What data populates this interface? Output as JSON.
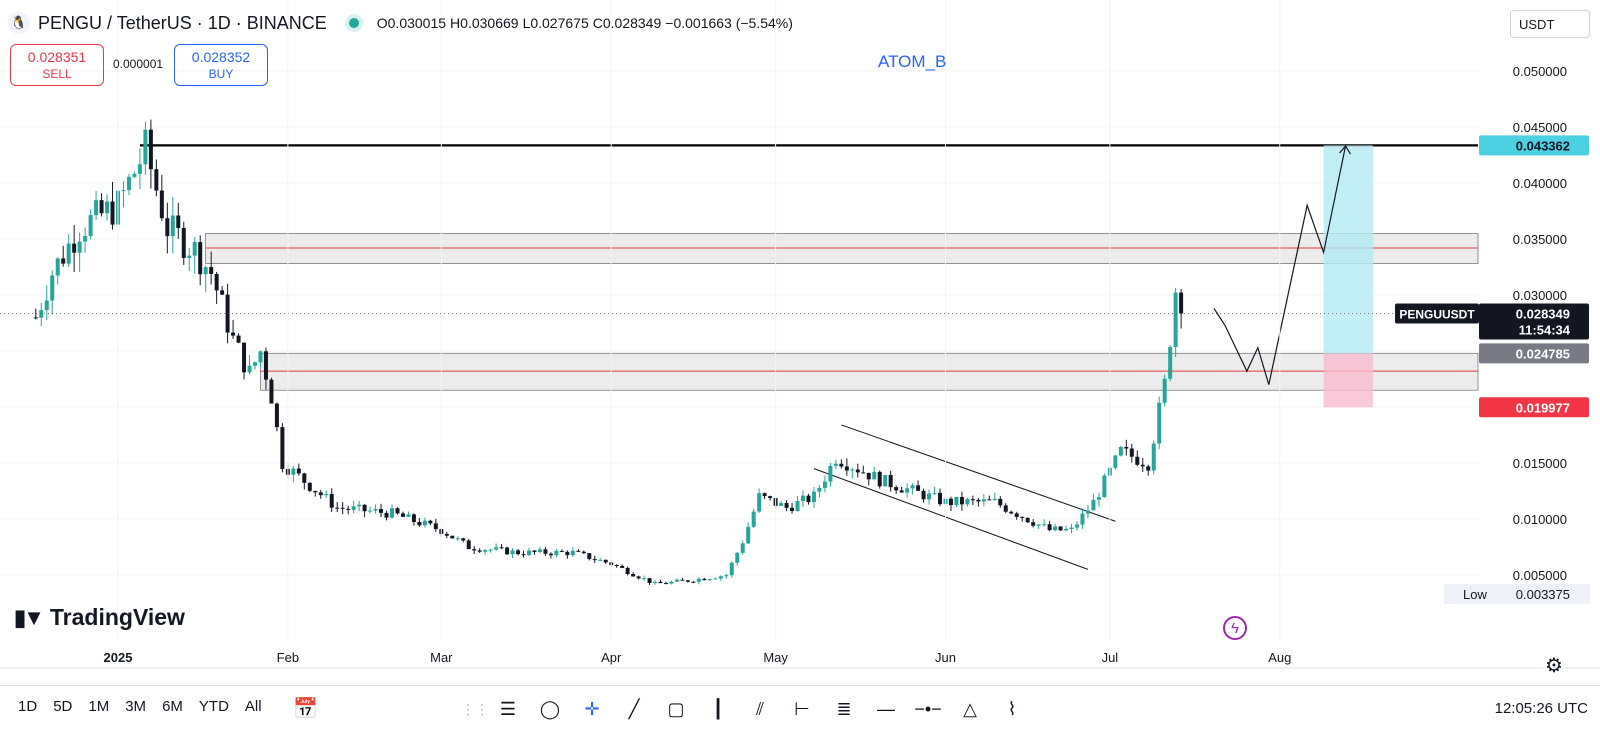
{
  "header": {
    "symbol": "PENGU / TetherUS · 1D · BINANCE",
    "open": "O0.030015",
    "high": "H0.030669",
    "low": "L0.027675",
    "close": "C0.028349",
    "change": "−0.001663 (−5.54%)"
  },
  "trade": {
    "sell_price": "0.028351",
    "sell_label": "SELL",
    "spread": "0.000001",
    "buy_price": "0.028352",
    "buy_label": "BUY"
  },
  "currency": "USDT",
  "annotation": "ATOM_B",
  "branding": "TradingView",
  "price_badges": {
    "target": "0.043362",
    "symbol_tag": "PENGUUSDT",
    "last_price": "0.028349",
    "countdown": "11:54:34",
    "entry": "0.024785",
    "stop": "0.019977",
    "low_label": "Low",
    "low_value": "0.003375"
  },
  "bottom_bar": {
    "ranges": [
      "1D",
      "5D",
      "1M",
      "3M",
      "6M",
      "YTD",
      "All"
    ],
    "time": "12:05:26 UTC"
  },
  "colors": {
    "up": "#26a69a",
    "down": "#131722",
    "target_box": "#b2ebf2",
    "stop_box": "#f8bbd0",
    "zone": "#e0e0e0",
    "zone_line": "#e53935",
    "target_badge": "#4dd0e1",
    "stop_badge": "#f23645",
    "accent": "#2962ff"
  },
  "chart_data": {
    "type": "candlestick",
    "symbol": "PENGUUSDT",
    "interval": "1D",
    "y_ticks": [
      0.005,
      0.01,
      0.015,
      0.02,
      0.025,
      0.03,
      0.035,
      0.04,
      0.045,
      0.05
    ],
    "y_tick_labels": [
      "0.005000",
      "0.010000",
      "0.015000",
      "0.020000",
      "0.025000",
      "0.030000",
      "0.035000",
      "0.040000",
      "0.045000",
      "0.050000"
    ],
    "x_labels": [
      "2025",
      "Feb",
      "Mar",
      "Apr",
      "May",
      "Jun",
      "Jul",
      "Aug"
    ],
    "x_label_dates": [
      "2025-01-01",
      "2025-02-01",
      "2025-03-01",
      "2025-04-01",
      "2025-05-01",
      "2025-06-01",
      "2025-07-01",
      "2025-08-01"
    ],
    "candle_closes": [
      {
        "date": "2024-12-17",
        "close": 0.028
      },
      {
        "date": "2024-12-20",
        "close": 0.032
      },
      {
        "date": "2024-12-25",
        "close": 0.036
      },
      {
        "date": "2025-01-01",
        "close": 0.038
      },
      {
        "date": "2025-01-06",
        "close": 0.043
      },
      {
        "date": "2025-01-10",
        "close": 0.036
      },
      {
        "date": "2025-01-15",
        "close": 0.034
      },
      {
        "date": "2025-01-18",
        "close": 0.032
      },
      {
        "date": "2025-01-22",
        "close": 0.026
      },
      {
        "date": "2025-01-25",
        "close": 0.023
      },
      {
        "date": "2025-01-27",
        "close": 0.025
      },
      {
        "date": "2025-01-29",
        "close": 0.021
      },
      {
        "date": "2025-01-31",
        "close": 0.015
      },
      {
        "date": "2025-02-05",
        "close": 0.013
      },
      {
        "date": "2025-02-10",
        "close": 0.011
      },
      {
        "date": "2025-02-20",
        "close": 0.0105
      },
      {
        "date": "2025-03-01",
        "close": 0.009
      },
      {
        "date": "2025-03-06",
        "close": 0.0075
      },
      {
        "date": "2025-03-15",
        "close": 0.007
      },
      {
        "date": "2025-03-25",
        "close": 0.007
      },
      {
        "date": "2025-04-01",
        "close": 0.006
      },
      {
        "date": "2025-04-09",
        "close": 0.0042
      },
      {
        "date": "2025-04-15",
        "close": 0.0045
      },
      {
        "date": "2025-04-22",
        "close": 0.005
      },
      {
        "date": "2025-04-25",
        "close": 0.008
      },
      {
        "date": "2025-04-28",
        "close": 0.012
      },
      {
        "date": "2025-05-03",
        "close": 0.011
      },
      {
        "date": "2025-05-08",
        "close": 0.012
      },
      {
        "date": "2025-05-12",
        "close": 0.0155
      },
      {
        "date": "2025-05-20",
        "close": 0.0135
      },
      {
        "date": "2025-06-01",
        "close": 0.0115
      },
      {
        "date": "2025-06-10",
        "close": 0.0115
      },
      {
        "date": "2025-06-20",
        "close": 0.009
      },
      {
        "date": "2025-06-24",
        "close": 0.009
      },
      {
        "date": "2025-06-28",
        "close": 0.0115
      },
      {
        "date": "2025-07-03",
        "close": 0.016
      },
      {
        "date": "2025-07-08",
        "close": 0.015
      },
      {
        "date": "2025-07-11",
        "close": 0.022
      },
      {
        "date": "2025-07-13",
        "close": 0.0305
      },
      {
        "date": "2025-07-14",
        "close": 0.028349
      }
    ],
    "last_price": 0.028349,
    "low": 0.003375,
    "target_level": 0.043362,
    "entry_level": 0.024785,
    "stop_level": 0.019977,
    "zones": [
      {
        "from": 0.0328,
        "to": 0.0355,
        "mid": 0.0342
      },
      {
        "from": 0.0215,
        "to": 0.0248,
        "mid": 0.0232
      }
    ],
    "channel": {
      "upper": [
        {
          "date": "2025-05-13",
          "price": 0.0184
        },
        {
          "date": "2025-07-02",
          "price": 0.0098
        }
      ],
      "lower": [
        {
          "date": "2025-05-08",
          "price": 0.0145
        },
        {
          "date": "2025-06-27",
          "price": 0.0055
        }
      ]
    },
    "projection": [
      {
        "date": "2025-07-20",
        "price": 0.0288
      },
      {
        "date": "2025-07-22",
        "price": 0.0273
      },
      {
        "date": "2025-07-26",
        "price": 0.0232
      },
      {
        "date": "2025-07-28",
        "price": 0.0253
      },
      {
        "date": "2025-07-30",
        "price": 0.022
      },
      {
        "date": "2025-08-06",
        "price": 0.038
      },
      {
        "date": "2025-08-09",
        "price": 0.0338
      },
      {
        "date": "2025-08-13",
        "price": 0.0433
      }
    ],
    "position": {
      "start": "2025-08-09",
      "end": "2025-08-18",
      "target": 0.043362,
      "entry": 0.024785,
      "stop": 0.019977
    }
  }
}
